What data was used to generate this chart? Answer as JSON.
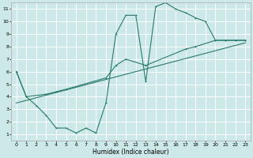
{
  "background_color": "#cce8e8",
  "grid_color": "#ffffff",
  "line_color": "#2a7a6a",
  "xlabel": "Humidex (Indice chaleur)",
  "xlim": [
    -0.5,
    23.5
  ],
  "ylim": [
    0.5,
    11.5
  ],
  "xticks": [
    0,
    1,
    2,
    3,
    4,
    5,
    6,
    7,
    8,
    9,
    10,
    11,
    12,
    13,
    14,
    15,
    16,
    17,
    18,
    19,
    20,
    21,
    22,
    23
  ],
  "yticks": [
    1,
    2,
    3,
    4,
    5,
    6,
    7,
    8,
    9,
    10,
    11
  ],
  "series1_x": [
    0,
    1,
    2,
    3,
    4,
    5,
    6,
    7,
    8,
    9,
    10,
    11,
    12,
    13,
    14,
    15,
    16,
    17,
    18,
    19,
    20,
    21,
    22,
    23
  ],
  "series1_y": [
    6.0,
    4.0,
    3.3,
    2.5,
    1.5,
    1.5,
    1.1,
    1.5,
    1.1,
    3.5,
    9.0,
    10.5,
    10.5,
    5.2,
    11.2,
    11.5,
    11.0,
    10.7,
    10.3,
    10.0,
    8.5,
    8.5,
    8.5,
    8.5
  ],
  "series2_x": [
    0,
    1,
    3,
    4,
    5,
    9,
    10,
    11,
    13,
    17,
    18,
    20,
    21,
    22,
    23
  ],
  "series2_y": [
    6.0,
    4.0,
    4.2,
    4.4,
    4.6,
    5.5,
    6.5,
    7.0,
    6.5,
    7.8,
    8.0,
    8.5,
    8.5,
    8.5,
    8.5
  ],
  "series3_x": [
    0,
    23
  ],
  "series3_y": [
    3.5,
    8.3
  ]
}
